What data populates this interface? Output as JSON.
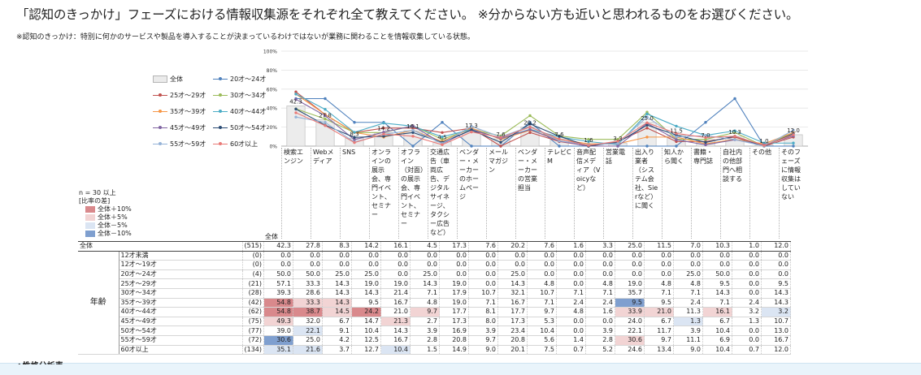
{
  "title": "「認知のきっかけ」フェーズにおける情報収集源をそれぞれ全て教えてください。 ※分からない方も近いと思われるものをお選びください。",
  "subtitle": "※認知のきっかけ：特別に何かのサービスや製品を導入することが決まっているわけではないが業務に関わることを情報収集している状態。",
  "footer_text": "◆性格分析表",
  "overall_label": "全体",
  "diff_legend": {
    "title1": "n = 30 以上",
    "title2": "[比率の差]",
    "items": [
      {
        "label": "全体＋10%",
        "color": "#d9898c"
      },
      {
        "label": "全体＋5%",
        "color": "#f2d4d4"
      },
      {
        "label": "全体－5%",
        "color": "#dbe5f3"
      },
      {
        "label": "全体－10%",
        "color": "#7f9fcf"
      }
    ]
  },
  "colors": {
    "12才～19才": "#999999",
    "20才～24才": "#4f81bd",
    "25才～29才": "#c0504d",
    "30才～34才": "#9bbb59",
    "35才～39才": "#f79646",
    "40才～44才": "#4bacc6",
    "45才～49才": "#8064a2",
    "50才～54才": "#2c4d75",
    "55才～59才": "#95b3d7",
    "60才以上": "#e97a77"
  },
  "chart_data": {
    "type": "bar",
    "y_ticks": [
      "0%",
      "20%",
      "40%",
      "60%",
      "80%",
      "100%"
    ],
    "ylim": [
      0,
      100
    ],
    "categories": [
      "検索エンジン",
      "Webメディア",
      "SNS",
      "オンラインの展示会、専門イベント、セミナー",
      "オフライン（対面）の展示会、専門イベント、セミナー",
      "交通広告（車両広告、デジタルサイネージ、タクシー広告など）",
      "ベンダー・メーカーのホームページ",
      "メールマガジン",
      "ベンダー・メーカーの営業担当",
      "テレビCM",
      "音声配信メディア（Voicyなど）",
      "営業電話",
      "出入り業者（システム会社、Sierなど）に聞く",
      "知人から聞く",
      "書籍・専門誌",
      "自社内の他部門へ相談する",
      "その他",
      "そのフェーズに情報収集はしていない"
    ],
    "overall": {
      "label": "全体",
      "n": "(515)",
      "values": [
        42.3,
        27.8,
        8.3,
        14.2,
        16.1,
        4.5,
        17.3,
        7.6,
        20.2,
        7.6,
        1.6,
        3.3,
        25.0,
        11.5,
        7.0,
        10.3,
        1.0,
        12.0
      ]
    },
    "bar_labels": [
      "42.3",
      "27.8",
      "8.3",
      "14.2",
      "16.1",
      "4.5",
      "17.3",
      "7.6",
      "20.2",
      "7.6",
      "1.6",
      "3.3",
      "25.0",
      "11.5",
      "7.0",
      "10.3",
      "1.0",
      "12.0"
    ],
    "group_label": "年齢",
    "series": [
      {
        "name": "12才未満",
        "n": "(0)",
        "values": [
          0.0,
          0.0,
          0.0,
          0.0,
          0.0,
          0.0,
          0.0,
          0.0,
          0.0,
          0.0,
          0.0,
          0.0,
          0.0,
          0.0,
          0.0,
          0.0,
          0.0,
          0.0
        ]
      },
      {
        "name": "12才～19才",
        "n": "(0)",
        "values": [
          0.0,
          0.0,
          0.0,
          0.0,
          0.0,
          0.0,
          0.0,
          0.0,
          0.0,
          0.0,
          0.0,
          0.0,
          0.0,
          0.0,
          0.0,
          0.0,
          0.0,
          0.0
        ]
      },
      {
        "name": "20才～24才",
        "n": "(4)",
        "values": [
          50.0,
          50.0,
          25.0,
          25.0,
          0.0,
          25.0,
          0.0,
          0.0,
          25.0,
          0.0,
          0.0,
          0.0,
          0.0,
          0.0,
          25.0,
          50.0,
          0.0,
          0.0
        ]
      },
      {
        "name": "25才～29才",
        "n": "(21)",
        "values": [
          57.1,
          33.3,
          14.3,
          19.0,
          19.0,
          14.3,
          19.0,
          0.0,
          14.3,
          4.8,
          0.0,
          4.8,
          19.0,
          4.8,
          4.8,
          9.5,
          0.0,
          9.5
        ]
      },
      {
        "name": "30才～34才",
        "n": "(28)",
        "values": [
          39.3,
          28.6,
          14.3,
          14.3,
          21.4,
          7.1,
          17.9,
          10.7,
          32.1,
          10.7,
          7.1,
          7.1,
          35.7,
          7.1,
          7.1,
          14.3,
          0.0,
          14.3
        ]
      },
      {
        "name": "35才～39才",
        "n": "(42)",
        "values": [
          54.8,
          33.3,
          14.3,
          9.5,
          16.7,
          4.8,
          19.0,
          7.1,
          16.7,
          7.1,
          2.4,
          2.4,
          9.5,
          9.5,
          2.4,
          7.1,
          2.4,
          14.3
        ]
      },
      {
        "name": "40才～44才",
        "n": "(62)",
        "values": [
          54.8,
          38.7,
          14.5,
          24.2,
          21.0,
          9.7,
          17.7,
          8.1,
          17.7,
          9.7,
          4.8,
          1.6,
          33.9,
          21.0,
          11.3,
          16.1,
          3.2,
          3.2
        ]
      },
      {
        "name": "45才～49才",
        "n": "(75)",
        "values": [
          49.3,
          32.0,
          6.7,
          14.7,
          21.3,
          2.7,
          17.3,
          8.0,
          17.3,
          5.3,
          0.0,
          0.0,
          24.0,
          6.7,
          1.3,
          6.7,
          1.3,
          10.7
        ]
      },
      {
        "name": "50才～54才",
        "n": "(77)",
        "values": [
          39.0,
          22.1,
          9.1,
          10.4,
          14.3,
          3.9,
          16.9,
          3.9,
          23.4,
          10.4,
          0.0,
          3.9,
          22.1,
          11.7,
          3.9,
          10.4,
          0.0,
          13.0
        ]
      },
      {
        "name": "55才～59才",
        "n": "(72)",
        "values": [
          30.6,
          25.0,
          4.2,
          12.5,
          16.7,
          2.8,
          20.8,
          9.7,
          20.8,
          5.6,
          1.4,
          2.8,
          30.6,
          9.7,
          11.1,
          6.9,
          0.0,
          16.7
        ]
      },
      {
        "name": "60才以上",
        "n": "(134)",
        "values": [
          35.1,
          21.6,
          3.7,
          12.7,
          10.4,
          1.5,
          14.9,
          9.0,
          20.1,
          7.5,
          0.7,
          5.2,
          24.6,
          13.4,
          9.0,
          10.4,
          0.7,
          12.0
        ]
      }
    ],
    "legend": [
      "全体",
      "20才～24才",
      "25才～29才",
      "30才～34才",
      "35才～39才",
      "40才～44才",
      "45才～49才",
      "50才～54才",
      "55才～59才",
      "60才以上"
    ],
    "legend_placement": "left",
    "grid": true
  }
}
